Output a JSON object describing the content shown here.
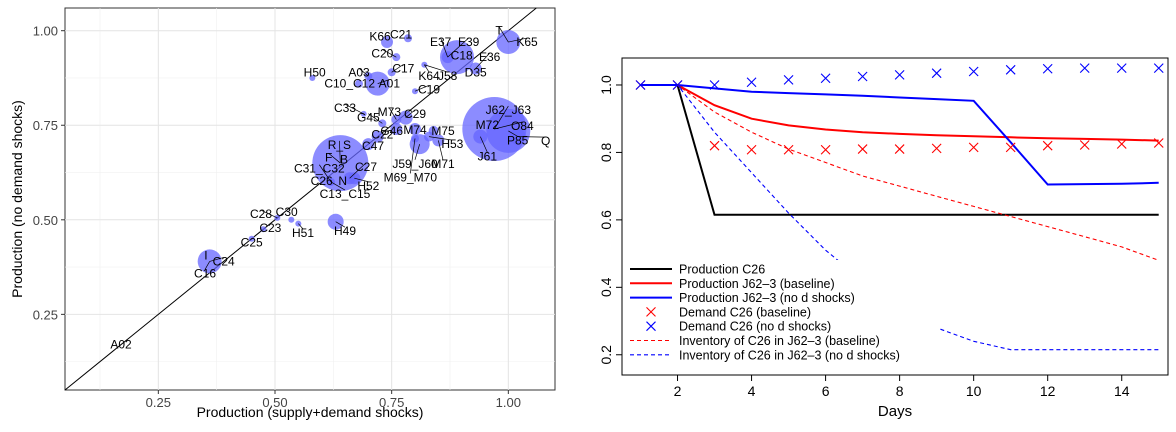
{
  "chart_data": [
    {
      "type": "scatter",
      "xlabel": "Production (supply+demand shocks)",
      "ylabel": "Production (no demand shocks)",
      "xlim": [
        0.05,
        1.1
      ],
      "ylim": [
        0.05,
        1.06
      ],
      "xticks": [
        0.25,
        0.5,
        0.75,
        1.0
      ],
      "xtick_labels": [
        "0.25",
        "0.50",
        "0.75",
        "1.00"
      ],
      "yticks": [
        0.25,
        0.5,
        0.75,
        1.0
      ],
      "ytick_labels": [
        "0.25",
        "0.50",
        "0.75",
        "1.00"
      ],
      "grid": true,
      "diagonal_line": true,
      "point_color": "#6666ff",
      "points": [
        {
          "x": 0.64,
          "y": 0.65,
          "size": 28,
          "labels": [
            {
              "text": "R_S",
              "lx": 0.638,
              "ly": 0.698
            },
            {
              "text": "B",
              "lx": 0.648,
              "ly": 0.66
            },
            {
              "text": "F",
              "lx": 0.615,
              "ly": 0.665
            }
          ]
        },
        {
          "x": 0.97,
          "y": 0.74,
          "size": 32,
          "labels": [
            {
              "text": "J62_J63",
              "lx": 1.0,
              "ly": 0.79
            },
            {
              "text": "M72",
              "lx": 0.955,
              "ly": 0.75
            },
            {
              "text": "O84",
              "lx": 1.03,
              "ly": 0.748
            }
          ]
        },
        {
          "x": 1.0,
          "y": 0.735,
          "size": 22,
          "labels": [
            {
              "text": "P85",
              "lx": 1.02,
              "ly": 0.71
            }
          ]
        },
        {
          "x": 1.02,
          "y": 0.72,
          "size": 8,
          "labels": [
            {
              "text": "Q",
              "lx": 1.08,
              "ly": 0.708
            }
          ]
        },
        {
          "x": 0.89,
          "y": 0.93,
          "size": 17,
          "labels": [
            {
              "text": "C18",
              "lx": 0.9,
              "ly": 0.934
            }
          ]
        },
        {
          "x": 0.87,
          "y": 0.93,
          "size": 6,
          "labels": [
            {
              "text": "E37",
              "lx": 0.855,
              "ly": 0.97
            },
            {
              "text": "E39",
              "lx": 0.915,
              "ly": 0.97
            }
          ]
        },
        {
          "x": 1.0,
          "y": 0.97,
          "size": 12,
          "labels": [
            {
              "text": "T",
              "lx": 0.98,
              "ly": 1.0
            },
            {
              "text": "K65",
              "lx": 1.04,
              "ly": 0.97
            }
          ]
        },
        {
          "x": 0.93,
          "y": 0.9,
          "size": 6,
          "labels": [
            {
              "text": "E36",
              "lx": 0.96,
              "ly": 0.93
            },
            {
              "text": "D35",
              "lx": 0.93,
              "ly": 0.89
            }
          ]
        },
        {
          "x": 0.72,
          "y": 0.86,
          "size": 12,
          "labels": [
            {
              "text": "A01",
              "lx": 0.745,
              "ly": 0.86
            }
          ]
        },
        {
          "x": 0.74,
          "y": 0.97,
          "size": 6,
          "labels": [
            {
              "text": "K66",
              "lx": 0.725,
              "ly": 0.985
            }
          ]
        },
        {
          "x": 0.785,
          "y": 0.98,
          "size": 4,
          "labels": [
            {
              "text": "C21",
              "lx": 0.77,
              "ly": 0.99
            }
          ]
        },
        {
          "x": 0.76,
          "y": 0.93,
          "size": 4,
          "labels": [
            {
              "text": "C20",
              "lx": 0.73,
              "ly": 0.94
            }
          ]
        },
        {
          "x": 0.7,
          "y": 0.88,
          "size": 4,
          "labels": [
            {
              "text": "A03",
              "lx": 0.68,
              "ly": 0.89
            }
          ]
        },
        {
          "x": 0.75,
          "y": 0.89,
          "size": 4,
          "labels": [
            {
              "text": "C17",
              "lx": 0.775,
              "ly": 0.9
            }
          ]
        },
        {
          "x": 0.58,
          "y": 0.875,
          "size": 3,
          "labels": [
            {
              "text": "H50",
              "lx": 0.585,
              "ly": 0.89
            }
          ]
        },
        {
          "x": 0.68,
          "y": 0.86,
          "size": 4,
          "labels": [
            {
              "text": "C10_C12",
              "lx": 0.66,
              "ly": 0.86
            }
          ]
        },
        {
          "x": 0.82,
          "y": 0.91,
          "size": 3,
          "labels": [
            {
              "text": "K64",
              "lx": 0.83,
              "ly": 0.88
            },
            {
              "text": "J58",
              "lx": 0.87,
              "ly": 0.88
            }
          ]
        },
        {
          "x": 0.8,
          "y": 0.84,
          "size": 3,
          "labels": [
            {
              "text": "C19",
              "lx": 0.83,
              "ly": 0.845
            }
          ]
        },
        {
          "x": 0.78,
          "y": 0.77,
          "size": 7,
          "labels": [
            {
              "text": "C29",
              "lx": 0.8,
              "ly": 0.78
            }
          ]
        },
        {
          "x": 0.76,
          "y": 0.765,
          "size": 5,
          "labels": [
            {
              "text": "M73",
              "lx": 0.745,
              "ly": 0.785
            }
          ]
        },
        {
          "x": 0.69,
          "y": 0.78,
          "size": 3,
          "labels": [
            {
              "text": "C33",
              "lx": 0.65,
              "ly": 0.795
            }
          ]
        },
        {
          "x": 0.73,
          "y": 0.755,
          "size": 4,
          "labels": [
            {
              "text": "G45",
              "lx": 0.7,
              "ly": 0.77
            }
          ]
        },
        {
          "x": 0.76,
          "y": 0.74,
          "size": 6,
          "labels": [
            {
              "text": "G46",
              "lx": 0.75,
              "ly": 0.735
            }
          ]
        },
        {
          "x": 0.8,
          "y": 0.74,
          "size": 6,
          "labels": [
            {
              "text": "M74",
              "lx": 0.8,
              "ly": 0.737
            }
          ]
        },
        {
          "x": 0.84,
          "y": 0.735,
          "size": 5,
          "labels": [
            {
              "text": "M75",
              "lx": 0.86,
              "ly": 0.735
            }
          ]
        },
        {
          "x": 0.72,
          "y": 0.72,
          "size": 6,
          "labels": [
            {
              "text": "C22",
              "lx": 0.73,
              "ly": 0.725
            }
          ]
        },
        {
          "x": 0.7,
          "y": 0.7,
          "size": 6,
          "labels": [
            {
              "text": "C47",
              "lx": 0.71,
              "ly": 0.695
            }
          ]
        },
        {
          "x": 0.81,
          "y": 0.7,
          "size": 10,
          "labels": [
            {
              "text": "J59_J60",
              "lx": 0.8,
              "ly": 0.648
            }
          ]
        },
        {
          "x": 0.85,
          "y": 0.71,
          "size": 6,
          "labels": [
            {
              "text": "M71",
              "lx": 0.86,
              "ly": 0.648
            }
          ]
        },
        {
          "x": 0.83,
          "y": 0.72,
          "size": 5,
          "labels": [
            {
              "text": "H53",
              "lx": 0.88,
              "ly": 0.7
            }
          ]
        },
        {
          "x": 0.94,
          "y": 0.72,
          "size": 7,
          "labels": [
            {
              "text": "J61",
              "lx": 0.955,
              "ly": 0.668
            }
          ]
        },
        {
          "x": 0.8,
          "y": 0.715,
          "size": 4,
          "labels": [
            {
              "text": "M69_M70",
              "lx": 0.79,
              "ly": 0.612
            }
          ]
        },
        {
          "x": 0.66,
          "y": 0.61,
          "size": 6,
          "labels": [
            {
              "text": "C27",
              "lx": 0.695,
              "ly": 0.64
            },
            {
              "text": "N",
              "lx": 0.645,
              "ly": 0.603
            }
          ]
        },
        {
          "x": 0.62,
          "y": 0.6,
          "size": 4,
          "labels": [
            {
              "text": "C31_C32",
              "lx": 0.595,
              "ly": 0.635
            },
            {
              "text": "C26",
              "lx": 0.6,
              "ly": 0.603
            },
            {
              "text": "C13_C15",
              "lx": 0.65,
              "ly": 0.568
            }
          ]
        },
        {
          "x": 0.67,
          "y": 0.61,
          "size": 6,
          "labels": [
            {
              "text": "H52",
              "lx": 0.7,
              "ly": 0.59
            }
          ]
        },
        {
          "x": 0.63,
          "y": 0.495,
          "size": 8,
          "labels": [
            {
              "text": "H49",
              "lx": 0.65,
              "ly": 0.47
            }
          ]
        },
        {
          "x": 0.535,
          "y": 0.5,
          "size": 3,
          "labels": [
            {
              "text": "C30",
              "lx": 0.525,
              "ly": 0.52
            }
          ]
        },
        {
          "x": 0.505,
          "y": 0.505,
          "size": 3,
          "labels": [
            {
              "text": "C28",
              "lx": 0.47,
              "ly": 0.515
            }
          ]
        },
        {
          "x": 0.475,
          "y": 0.475,
          "size": 3,
          "labels": [
            {
              "text": "C23",
              "lx": 0.49,
              "ly": 0.478
            }
          ]
        },
        {
          "x": 0.55,
          "y": 0.49,
          "size": 3,
          "labels": [
            {
              "text": "H51",
              "lx": 0.56,
              "ly": 0.465
            }
          ]
        },
        {
          "x": 0.45,
          "y": 0.45,
          "size": 3,
          "labels": [
            {
              "text": "C25",
              "lx": 0.45,
              "ly": 0.44
            }
          ]
        },
        {
          "x": 0.36,
          "y": 0.39,
          "size": 12,
          "labels": [
            {
              "text": "I",
              "lx": 0.352,
              "ly": 0.405
            },
            {
              "text": "C24",
              "lx": 0.39,
              "ly": 0.39
            },
            {
              "text": "C16",
              "lx": 0.35,
              "ly": 0.358
            }
          ]
        },
        {
          "x": 0.16,
          "y": 0.17,
          "size": 0,
          "labels": [
            {
              "text": "A02",
              "lx": 0.17,
              "ly": 0.17
            }
          ]
        }
      ],
      "callout_color": "#000000"
    },
    {
      "type": "line",
      "xlabel": "Days",
      "ylabel": "",
      "xlim": [
        0.5,
        15.25
      ],
      "ylim": [
        0.14,
        1.08
      ],
      "xticks": [
        2,
        4,
        6,
        8,
        10,
        12,
        14
      ],
      "xtick_labels": [
        "2",
        "4",
        "6",
        "8",
        "10",
        "12",
        "14"
      ],
      "yticks": [
        0.2,
        0.4,
        0.6,
        0.8,
        1.0
      ],
      "ytick_labels": [
        "0.2",
        "0.4",
        "0.6",
        "0.8",
        "1.0"
      ],
      "grid": false,
      "legend_position": "bottom-left",
      "series": [
        {
          "name": "Production C26",
          "style": "line",
          "color": "#000000",
          "x": [
            1,
            2,
            3,
            4,
            5,
            6,
            7,
            8,
            9,
            10,
            11,
            12,
            13,
            14,
            15
          ],
          "values": [
            1.0,
            1.0,
            0.615,
            0.615,
            0.615,
            0.615,
            0.615,
            0.615,
            0.615,
            0.615,
            0.615,
            0.615,
            0.615,
            0.615,
            0.615
          ]
        },
        {
          "name": "Production J62–3 (baseline)",
          "style": "line",
          "color": "#ff0000",
          "x": [
            1,
            2,
            3,
            4,
            5,
            6,
            7,
            8,
            9,
            10,
            11,
            12,
            13,
            14,
            15
          ],
          "values": [
            1.0,
            1.0,
            0.94,
            0.9,
            0.88,
            0.868,
            0.86,
            0.855,
            0.851,
            0.848,
            0.845,
            0.842,
            0.84,
            0.838,
            0.835
          ]
        },
        {
          "name": "Production J62–3 (no d shocks)",
          "style": "line",
          "color": "#0000ff",
          "x": [
            1,
            2,
            3,
            4,
            5,
            6,
            7,
            8,
            9,
            10,
            11,
            12,
            13,
            14,
            15
          ],
          "values": [
            1.0,
            1.0,
            0.99,
            0.98,
            0.976,
            0.972,
            0.968,
            0.963,
            0.958,
            0.953,
            0.83,
            0.705,
            0.706,
            0.707,
            0.71
          ]
        },
        {
          "name": "Demand C26 (baseline)",
          "style": "x",
          "color": "#ff0000",
          "x": [
            1,
            2,
            3,
            4,
            5,
            6,
            7,
            8,
            9,
            10,
            11,
            12,
            13,
            14,
            15
          ],
          "values": [
            1.0,
            1.0,
            0.82,
            0.808,
            0.808,
            0.808,
            0.81,
            0.81,
            0.812,
            0.815,
            0.815,
            0.82,
            0.822,
            0.825,
            0.828
          ]
        },
        {
          "name": "Demand C26 (no d shocks)",
          "style": "x",
          "color": "#0000ff",
          "x": [
            1,
            2,
            3,
            4,
            5,
            6,
            7,
            8,
            9,
            10,
            11,
            12,
            13,
            14,
            15
          ],
          "values": [
            1.0,
            1.0,
            1.0,
            1.008,
            1.015,
            1.02,
            1.025,
            1.03,
            1.035,
            1.04,
            1.045,
            1.048,
            1.05,
            1.05,
            1.05
          ]
        },
        {
          "name": "Inventory of C26 in J62–3 (baseline)",
          "style": "dashed",
          "color": "#ff0000",
          "x": [
            1,
            2,
            3,
            4,
            5,
            6,
            7,
            8,
            9,
            10,
            11,
            12,
            13,
            14,
            15
          ],
          "values": [
            1.0,
            1.0,
            0.92,
            0.86,
            0.81,
            0.77,
            0.73,
            0.7,
            0.67,
            0.64,
            0.61,
            0.58,
            0.55,
            0.52,
            0.48
          ]
        },
        {
          "name": "Inventory of C26 in J62–3 (no d shocks)",
          "style": "dashed",
          "color": "#0000ff",
          "x": [
            1,
            2,
            3,
            4,
            5,
            6,
            7,
            8,
            9,
            10,
            11,
            12,
            13,
            14,
            15
          ],
          "values": [
            1.0,
            1.0,
            0.86,
            0.74,
            0.62,
            0.51,
            0.42,
            0.34,
            0.28,
            0.24,
            0.215,
            0.215,
            0.215,
            0.215,
            0.215
          ]
        }
      ]
    }
  ]
}
